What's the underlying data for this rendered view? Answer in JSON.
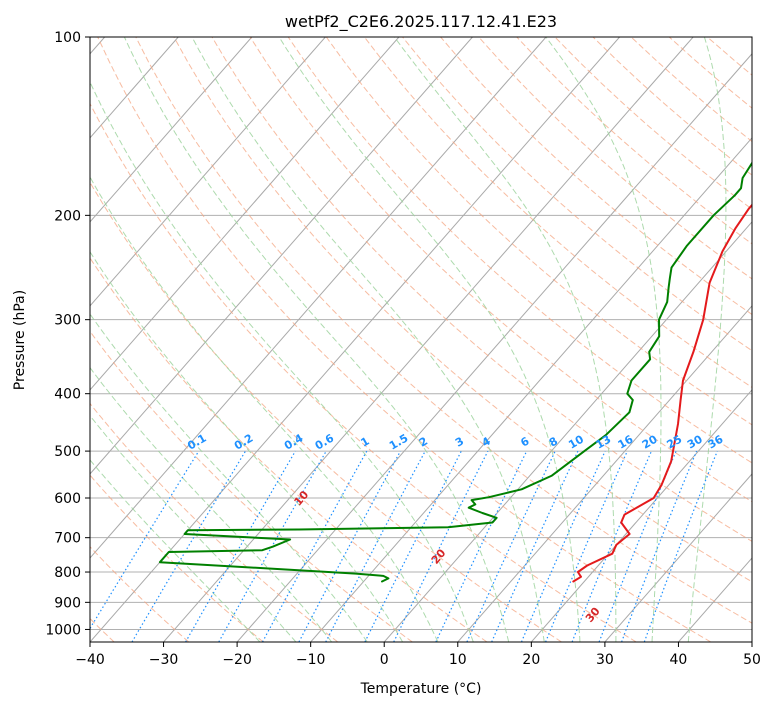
{
  "chart_data": {
    "type": "line",
    "title": "wetPf2_C2E6.2025.117.12.41.E23",
    "xlabel": "Temperature (°C)",
    "ylabel": "Pressure (hPa)",
    "xlim": [
      -40,
      50
    ],
    "ylim": [
      1050,
      100
    ],
    "y_scale": "log",
    "grid": true,
    "x_ticks": [
      "−40",
      "−30",
      "−20",
      "−10",
      "0",
      "10",
      "20",
      "30",
      "40",
      "50"
    ],
    "y_ticks": [
      "100",
      "200",
      "300",
      "400",
      "500",
      "600",
      "700",
      "800",
      "900",
      "1000"
    ],
    "series": [
      {
        "color": "#e41a1c",
        "points": [
          [
            18.5,
            830
          ],
          [
            19.0,
            815
          ],
          [
            18.0,
            800
          ],
          [
            18.5,
            780
          ],
          [
            20.5,
            745
          ],
          [
            20.0,
            720
          ],
          [
            20.5,
            690
          ],
          [
            18.0,
            660
          ],
          [
            17.5,
            640
          ],
          [
            18.5,
            620
          ],
          [
            19.5,
            600
          ],
          [
            19.0,
            570
          ],
          [
            17.5,
            520
          ],
          [
            14.0,
            450
          ],
          [
            11.5,
            410
          ],
          [
            9.5,
            380
          ],
          [
            7.5,
            340
          ],
          [
            5.0,
            300
          ],
          [
            1.5,
            260
          ],
          [
            -0.5,
            230
          ],
          [
            -1.5,
            210
          ],
          [
            -2.0,
            195
          ],
          [
            -2.0,
            185
          ],
          [
            -1.0,
            178
          ],
          [
            1.0,
            172
          ],
          [
            4.5,
            165
          ],
          [
            8.0,
            158
          ],
          [
            10.0,
            150
          ],
          [
            10.5,
            140
          ],
          [
            11.0,
            130
          ],
          [
            11.0,
            120
          ],
          [
            11.5,
            110
          ],
          [
            13.0,
            104
          ],
          [
            14.0,
            100
          ]
        ]
      },
      {
        "color": "#008000",
        "points": [
          [
            -7.5,
            830
          ],
          [
            -7.0,
            820
          ],
          [
            -8.0,
            812
          ],
          [
            -12.0,
            805
          ],
          [
            -40.0,
            770
          ],
          [
            -40.0,
            740
          ],
          [
            -27.5,
            735
          ],
          [
            -26.5,
            725
          ],
          [
            -25.0,
            705
          ],
          [
            -40.0,
            690
          ],
          [
            -40.0,
            680
          ],
          [
            -25.0,
            678
          ],
          [
            -5.0,
            672
          ],
          [
            0.5,
            660
          ],
          [
            0.5,
            648
          ],
          [
            -2.0,
            636
          ],
          [
            -4.5,
            623
          ],
          [
            -4.0,
            615
          ],
          [
            -5.0,
            605
          ],
          [
            -3.0,
            598
          ],
          [
            0.5,
            580
          ],
          [
            3.0,
            550
          ],
          [
            4.5,
            500
          ],
          [
            5.5,
            470
          ],
          [
            6.0,
            430
          ],
          [
            5.0,
            410
          ],
          [
            3.5,
            400
          ],
          [
            2.5,
            380
          ],
          [
            2.5,
            350
          ],
          [
            1.5,
            340
          ],
          [
            1.0,
            320
          ],
          [
            -1.0,
            300
          ],
          [
            -2.0,
            280
          ],
          [
            -3.5,
            265
          ],
          [
            -4.5,
            255
          ],
          [
            -5.5,
            245
          ],
          [
            -6.0,
            225
          ],
          [
            -6.0,
            200
          ],
          [
            -5.5,
            185
          ],
          [
            -5.5,
            180
          ],
          [
            -6.5,
            173
          ],
          [
            -7.0,
            163
          ],
          [
            -6.0,
            155
          ],
          [
            -5.5,
            140
          ],
          [
            -6.5,
            130
          ],
          [
            -5.5,
            120
          ],
          [
            -3.5,
            112
          ],
          [
            -2.0,
            106
          ],
          [
            -1.0,
            100
          ]
        ]
      }
    ],
    "annotations": {
      "dry_adiabats": [
        "-100",
        "-90",
        "-80",
        "-70",
        "-60",
        "-50",
        "-40",
        "-30",
        "-20",
        "-10",
        "0",
        "10",
        "20",
        "30",
        "40"
      ],
      "mixing_ratios": [
        "0.1",
        "0.2",
        "0.4",
        "0.6",
        "1",
        "1.5",
        "2",
        "3",
        "4",
        "6",
        "8",
        "10",
        "13",
        "16",
        "20",
        "25",
        "30",
        "36"
      ]
    },
    "colors": {
      "temperature": "#e41a1c",
      "dewpoint": "#008000",
      "isotherm": "#a9a9a9",
      "dry_adiabat": "#f4a582",
      "moist_adiabat": "#9fd39f",
      "mixing_ratio": "#1e90ff"
    }
  }
}
